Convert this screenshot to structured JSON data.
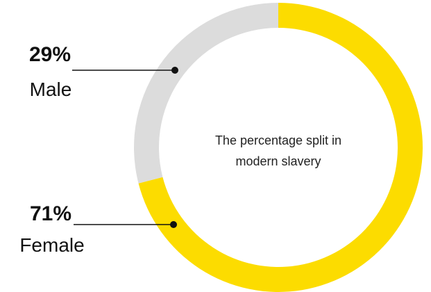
{
  "chart_data": {
    "type": "pie",
    "donut": true,
    "categories": [
      "Female",
      "Male"
    ],
    "values": [
      71,
      29
    ],
    "value_labels": [
      "71%",
      "29%"
    ],
    "colors": [
      "#fcdc00",
      "#dcdcdc"
    ],
    "center_text": [
      "The percentage split in",
      "modern slavery"
    ],
    "legend": "none"
  }
}
